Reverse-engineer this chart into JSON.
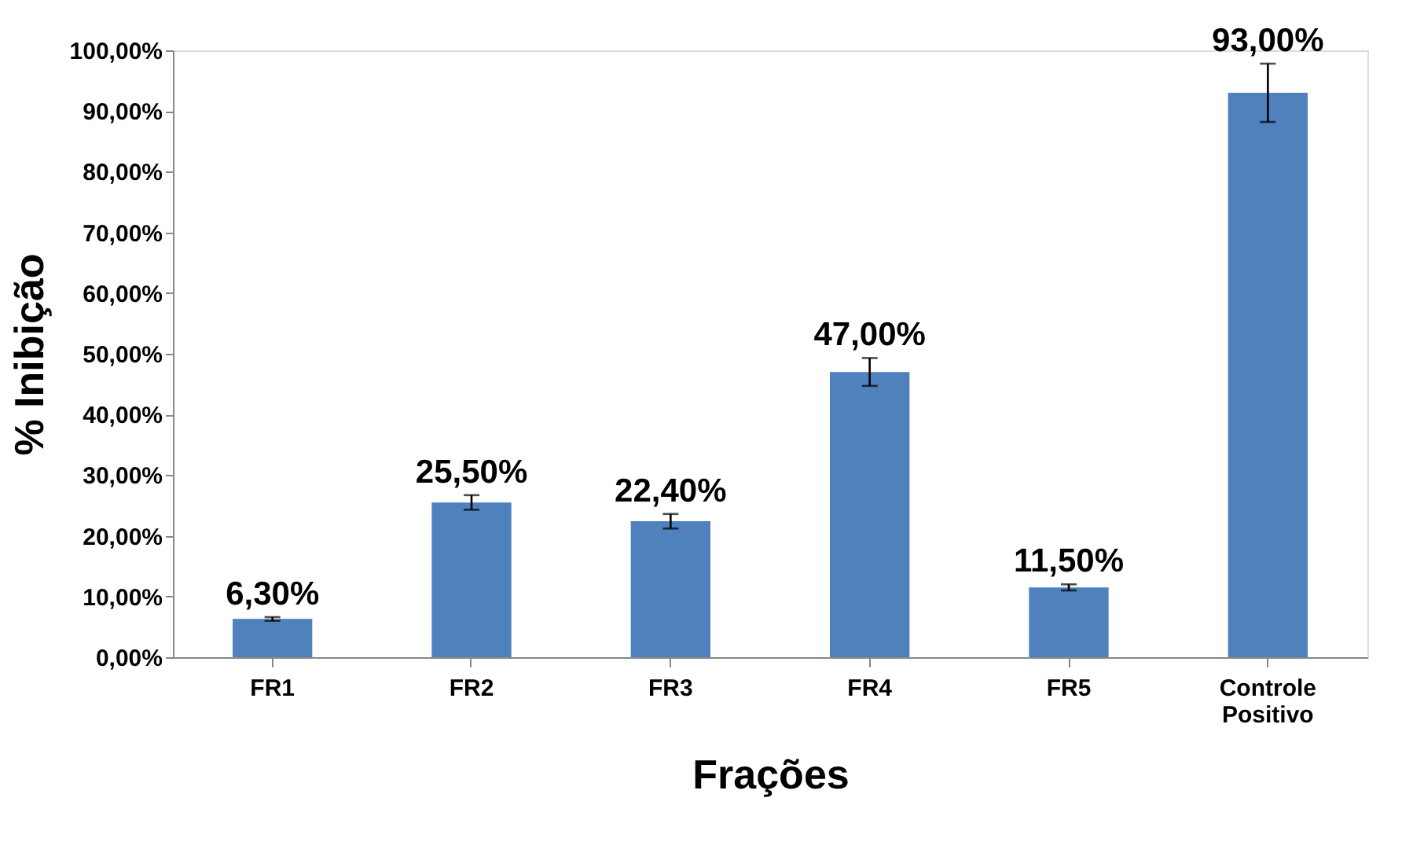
{
  "chart_data": {
    "type": "bar",
    "xlabel": "Frações",
    "ylabel": "% Inibição",
    "categories": [
      "FR1",
      "FR2",
      "FR3",
      "FR4",
      "FR5",
      "Controle Positivo"
    ],
    "values": [
      6.3,
      25.5,
      22.4,
      47.0,
      11.5,
      93.0
    ],
    "errors": [
      0.3,
      1.2,
      1.2,
      2.3,
      0.5,
      4.8
    ],
    "value_labels": [
      "6,30%",
      "25,50%",
      "22,40%",
      "47,00%",
      "11,50%",
      "93,00%"
    ],
    "color": "#4f81bd",
    "ylim": [
      0,
      100
    ],
    "yticks": [
      {
        "value": 0,
        "label": "0,00%"
      },
      {
        "value": 10,
        "label": "10,00%"
      },
      {
        "value": 20,
        "label": "20,00%"
      },
      {
        "value": 30,
        "label": "30,00%"
      },
      {
        "value": 40,
        "label": "40,00%"
      },
      {
        "value": 50,
        "label": "50,00%"
      },
      {
        "value": 60,
        "label": "60,00%"
      },
      {
        "value": 70,
        "label": "70,00%"
      },
      {
        "value": 80,
        "label": "80,00%"
      },
      {
        "value": 90,
        "label": "90,00%"
      },
      {
        "value": 100,
        "label": "100,00%"
      }
    ],
    "grid": false
  }
}
